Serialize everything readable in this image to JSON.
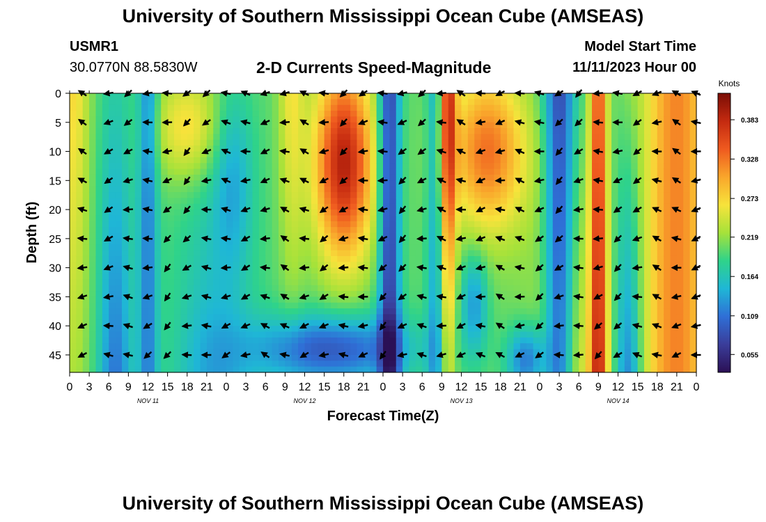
{
  "page": {
    "title": "University of Southern Mississippi Ocean Cube (AMSEAS)",
    "footer_title": "University of Southern Mississippi Ocean Cube (AMSEAS)",
    "station": "USMR1",
    "location": "30.0770N  88.5830W",
    "subtitle": "2-D Currents Speed-Magnitude",
    "model_start_label": "Model Start Time",
    "model_start_value": "11/11/2023 Hour 00"
  },
  "chart_data": {
    "type": "heatmap",
    "title": "2-D Currents Speed-Magnitude",
    "xlabel": "Forecast Time(Z)",
    "ylabel": "Depth (ft)",
    "x_range_hours": [
      0,
      96
    ],
    "y_range_ft": [
      0,
      48
    ],
    "x_tick_labels": [
      "0",
      "3",
      "6",
      "9",
      "12",
      "15",
      "18",
      "21",
      "0",
      "3",
      "6",
      "9",
      "12",
      "15",
      "18",
      "21",
      "0",
      "3",
      "6",
      "9",
      "12",
      "15",
      "18",
      "21",
      "0",
      "3",
      "6",
      "9",
      "12",
      "15",
      "18",
      "21",
      "0"
    ],
    "y_ticks": [
      0,
      5,
      10,
      15,
      20,
      25,
      30,
      35,
      40,
      45
    ],
    "y_tick_labels": [
      "0",
      "5",
      "10",
      "15",
      "20",
      "25",
      "30",
      "35",
      "40",
      "45"
    ],
    "day_labels": [
      {
        "label": "NOV 11",
        "hour": 12
      },
      {
        "label": "NOV 12",
        "hour": 36
      },
      {
        "label": "NOV 13",
        "hour": 60
      },
      {
        "label": "NOV 14",
        "hour": 84
      }
    ],
    "colorbar": {
      "unit": "Knots",
      "min": 0.03,
      "max": 0.42,
      "ticks": [
        "0.383",
        "0.328",
        "0.273",
        "0.219",
        "0.164",
        "0.109",
        "0.055"
      ],
      "colors": [
        "#2b1055",
        "#3a3d9a",
        "#2f6fd6",
        "#1fb7d6",
        "#2fd38a",
        "#a6e23a",
        "#f7e33b",
        "#f9a62b",
        "#ef5a1f",
        "#c42a10",
        "#7a0d05"
      ]
    },
    "arrow_columns_hours": [
      2,
      6,
      9,
      12,
      15,
      18,
      21,
      24,
      27,
      30,
      33,
      36,
      39,
      42,
      45,
      48,
      51,
      54,
      57,
      60,
      63,
      66,
      69,
      72,
      75,
      78,
      81,
      84,
      87,
      90,
      93,
      96
    ],
    "arrow_rows_ft": [
      0,
      5,
      10,
      15,
      20,
      25,
      30,
      35,
      40,
      45
    ]
  }
}
